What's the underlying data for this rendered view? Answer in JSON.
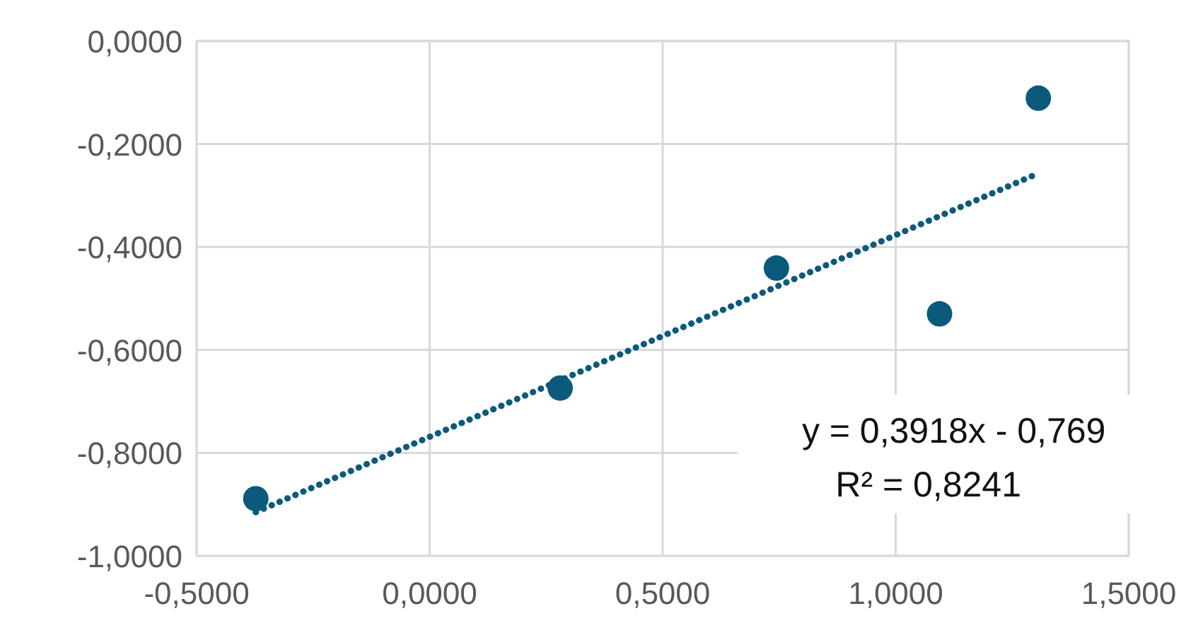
{
  "chart_data": {
    "type": "scatter",
    "series": [
      {
        "color": "#0b5a7c",
        "x": [
          -0.373,
          0.28,
          0.744,
          1.094,
          1.306
        ],
        "values": [
          -0.889,
          -0.674,
          -0.441,
          -0.53,
          -0.111
        ],
        "marker": "circle"
      },
      {
        "type": "line",
        "color": "#0b5a7c",
        "x": [
          -0.373,
          1.306
        ],
        "values": [
          -0.915,
          -0.257
        ],
        "line_style": "dotted",
        "marker": "none"
      }
    ],
    "xlim": [
      -0.5,
      1.5
    ],
    "xticks": [
      {
        "value": -0.5,
        "label": "-0,5000"
      },
      {
        "value": 0,
        "label": "0,0000"
      },
      {
        "value": 0.5,
        "label": "0,5000"
      },
      {
        "value": 1,
        "label": "1,0000"
      },
      {
        "value": 1.5,
        "label": "1,5000"
      }
    ],
    "ylim": [
      -1,
      0
    ],
    "yticks": [
      {
        "value": -1,
        "label": "-1,0000"
      },
      {
        "value": -0.8,
        "label": "-0,8000"
      },
      {
        "value": -0.6,
        "label": "-0,6000"
      },
      {
        "value": -0.4,
        "label": "-0,4000"
      },
      {
        "value": -0.2,
        "label": "-0,2000"
      },
      {
        "value": 0,
        "label": "0,0000"
      }
    ],
    "grid": true,
    "annotations": [
      "y = 0,3918x - 0,769",
      "R² = 0,8241"
    ]
  }
}
